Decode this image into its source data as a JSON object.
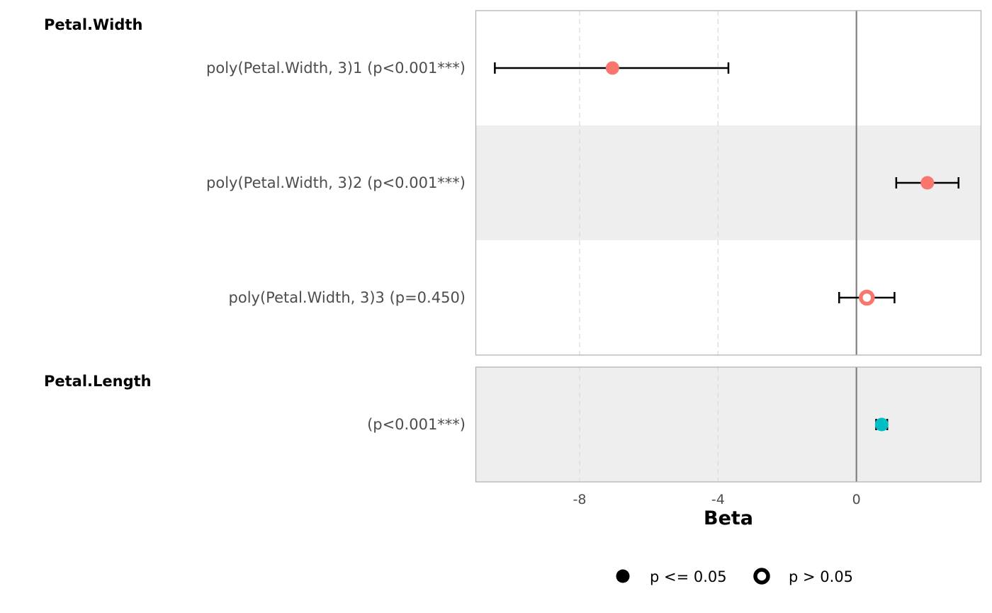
{
  "chart_data": {
    "type": "forest",
    "xlabel": "Beta",
    "xlim": [
      -11.0,
      3.6
    ],
    "x_ticks": [
      -8,
      -4,
      0
    ],
    "x_tick_labels": [
      "-8",
      "-4",
      "0"
    ],
    "reference_line": 0,
    "grid": "vertical dashed at major ticks",
    "groups": [
      {
        "name": "Petal.Width",
        "color": "#F8766D",
        "terms": [
          {
            "label": "poly(Petal.Width, 3)1 (p<0.001***)",
            "estimate": -7.05,
            "ci_low": -10.45,
            "ci_high": -3.7,
            "significant": true
          },
          {
            "label": "poly(Petal.Width, 3)2 (p<0.001***)",
            "estimate": 2.05,
            "ci_low": 1.15,
            "ci_high": 2.95,
            "significant": true
          },
          {
            "label": "poly(Petal.Width, 3)3 (p=0.450)",
            "estimate": 0.3,
            "ci_low": -0.5,
            "ci_high": 1.1,
            "significant": false
          }
        ]
      },
      {
        "name": "Petal.Length",
        "color": "#00BFC4",
        "terms": [
          {
            "label": "(p<0.001***)",
            "estimate": 0.73,
            "ci_low": 0.57,
            "ci_high": 0.89,
            "significant": true
          }
        ]
      }
    ],
    "legend": {
      "placement": "bottom",
      "items": [
        {
          "label": "p <= 0.05",
          "shape": "filled-circle"
        },
        {
          "label": "p > 0.05",
          "shape": "open-circle"
        }
      ]
    },
    "colors": {
      "panel_border": "#b3b3b3",
      "stripe": "#eeeeee",
      "grid": "#dcdcdc",
      "reference_line": "#808080",
      "error_bar": "#000000"
    }
  }
}
